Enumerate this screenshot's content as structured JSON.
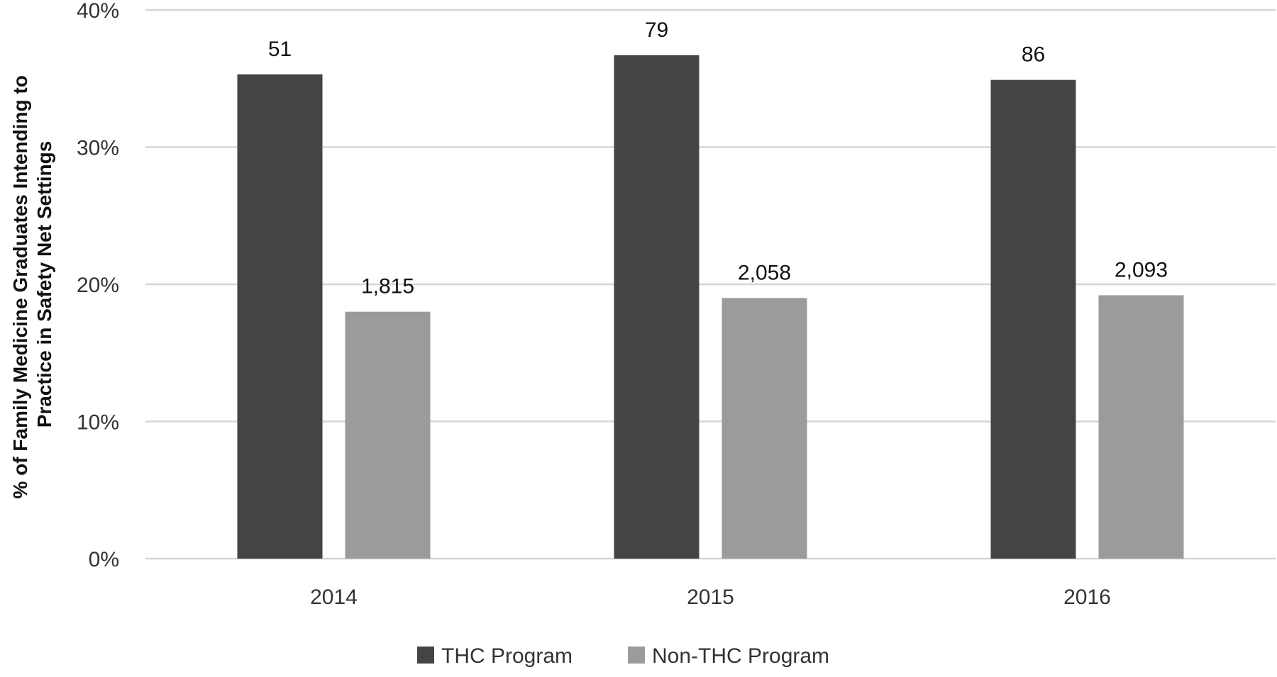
{
  "chart_data": {
    "type": "bar",
    "title": "",
    "xlabel": "",
    "ylabel": [
      "% of Family Medicine Graduates Intending to",
      "Practice in Safety Net Settings"
    ],
    "categories": [
      "2014",
      "2015",
      "2016"
    ],
    "ylim": [
      0,
      40
    ],
    "yticks": [
      0,
      10,
      20,
      30,
      40
    ],
    "ytick_labels": [
      "0%",
      "10%",
      "20%",
      "30%",
      "40%"
    ],
    "grid": true,
    "legend_position": "bottom",
    "series": [
      {
        "name": "THC Program",
        "color": "#444444",
        "values": [
          35.3,
          36.7,
          34.9
        ],
        "labels": [
          "51",
          "79",
          "86"
        ]
      },
      {
        "name": "Non-THC Program",
        "color": "#9b9b9b",
        "values": [
          18.0,
          19.0,
          19.2
        ],
        "labels": [
          "1,815",
          "2,058",
          "2,093"
        ]
      }
    ]
  }
}
